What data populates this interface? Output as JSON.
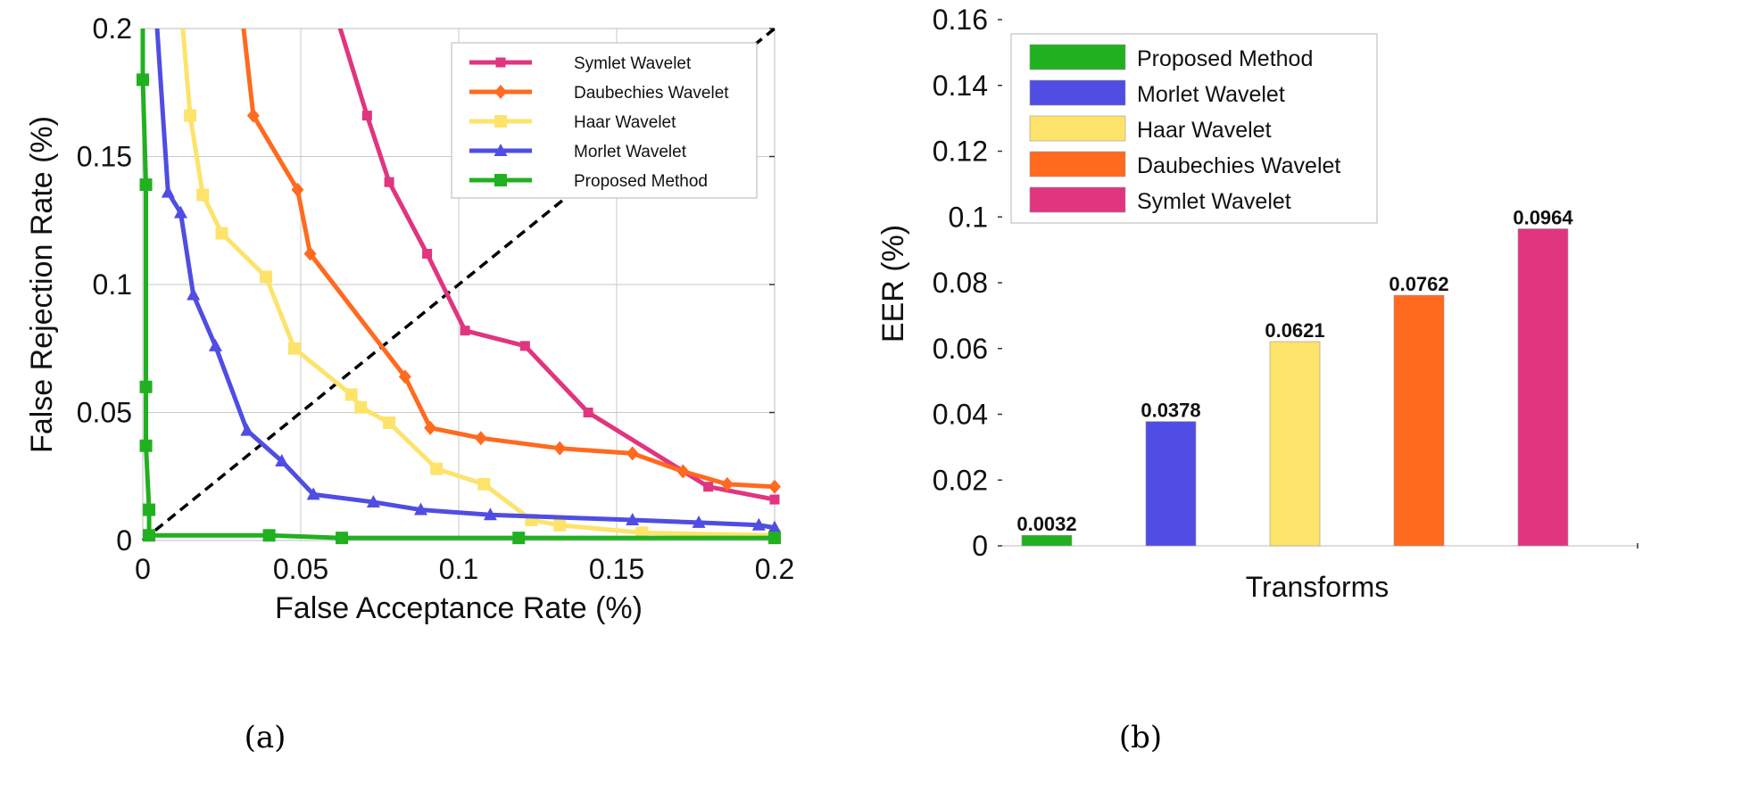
{
  "colors": {
    "symlet": "#E0357F",
    "daubechies": "#FF6A1F",
    "haar": "#FDE36A",
    "morlet": "#4F4DE3",
    "proposed": "#21B020",
    "grid": "#C8C8C8",
    "eer_line": "#000000"
  },
  "captions": {
    "a": "(a)",
    "b": "(b)"
  },
  "chart_data": [
    {
      "type": "line",
      "title": "",
      "xlabel": "False Acceptance Rate (%)",
      "ylabel": "False Rejection Rate (%)",
      "xlim": [
        0,
        0.2
      ],
      "ylim": [
        0,
        0.2
      ],
      "x_ticks": [
        0,
        0.05,
        0.1,
        0.15,
        0.2
      ],
      "x_tick_labels": [
        "0",
        "0.05",
        "0.1",
        "0.15",
        "0.2"
      ],
      "y_ticks": [
        0,
        0.05,
        0.1,
        0.15,
        0.2
      ],
      "y_tick_labels": [
        "0",
        "0.05",
        "0.1",
        "0.15",
        "0.2"
      ],
      "grid": true,
      "legend_position": "top-right",
      "equal_error_line": {
        "from": [
          0,
          0
        ],
        "to": [
          0.2,
          0.2
        ],
        "style": "dashed"
      },
      "series": [
        {
          "name": "Symlet Wavelet",
          "color_key": "symlet",
          "marker": "square-small",
          "points": [
            [
              0.06,
              0.21
            ],
            [
              0.071,
              0.166
            ],
            [
              0.078,
              0.14
            ],
            [
              0.09,
              0.112
            ],
            [
              0.102,
              0.082
            ],
            [
              0.121,
              0.076
            ],
            [
              0.141,
              0.05
            ],
            [
              0.179,
              0.021
            ],
            [
              0.2,
              0.016
            ]
          ]
        },
        {
          "name": "Daubechies Wavelet",
          "color_key": "daubechies",
          "marker": "diamond",
          "points": [
            [
              0.031,
              0.21
            ],
            [
              0.035,
              0.166
            ],
            [
              0.049,
              0.137
            ],
            [
              0.053,
              0.112
            ],
            [
              0.083,
              0.064
            ],
            [
              0.091,
              0.044
            ],
            [
              0.107,
              0.04
            ],
            [
              0.132,
              0.036
            ],
            [
              0.155,
              0.034
            ],
            [
              0.171,
              0.027
            ],
            [
              0.185,
              0.022
            ],
            [
              0.2,
              0.021
            ]
          ]
        },
        {
          "name": "Haar Wavelet",
          "color_key": "haar",
          "marker": "square",
          "points": [
            [
              0.012,
              0.21
            ],
            [
              0.015,
              0.166
            ],
            [
              0.019,
              0.135
            ],
            [
              0.025,
              0.12
            ],
            [
              0.039,
              0.103
            ],
            [
              0.048,
              0.075
            ],
            [
              0.066,
              0.057
            ],
            [
              0.069,
              0.052
            ],
            [
              0.078,
              0.046
            ],
            [
              0.093,
              0.028
            ],
            [
              0.108,
              0.022
            ],
            [
              0.123,
              0.008
            ],
            [
              0.132,
              0.006
            ],
            [
              0.158,
              0.003
            ],
            [
              0.2,
              0.002
            ]
          ]
        },
        {
          "name": "Morlet Wavelet",
          "color_key": "morlet",
          "marker": "triangle",
          "points": [
            [
              0.004,
              0.21
            ],
            [
              0.008,
              0.136
            ],
            [
              0.012,
              0.128
            ],
            [
              0.016,
              0.096
            ],
            [
              0.023,
              0.076
            ],
            [
              0.033,
              0.043
            ],
            [
              0.044,
              0.031
            ],
            [
              0.054,
              0.018
            ],
            [
              0.073,
              0.015
            ],
            [
              0.088,
              0.012
            ],
            [
              0.11,
              0.01
            ],
            [
              0.155,
              0.008
            ],
            [
              0.176,
              0.007
            ],
            [
              0.195,
              0.006
            ],
            [
              0.2,
              0.005
            ]
          ]
        },
        {
          "name": "Proposed Method",
          "color_key": "proposed",
          "marker": "square",
          "points": [
            [
              0,
              0.21
            ],
            [
              0,
              0.18
            ],
            [
              0.001,
              0.139
            ],
            [
              0.001,
              0.06
            ],
            [
              0.001,
              0.037
            ],
            [
              0.002,
              0.012
            ],
            [
              0.002,
              0.002
            ],
            [
              0.04,
              0.002
            ],
            [
              0.063,
              0.001
            ],
            [
              0.119,
              0.001
            ],
            [
              0.2,
              0.001
            ]
          ]
        }
      ]
    },
    {
      "type": "bar",
      "title": "",
      "xlabel": "Transforms",
      "ylabel": "EER (%)",
      "ylim": [
        0,
        0.16
      ],
      "y_ticks": [
        0,
        0.02,
        0.04,
        0.06,
        0.08,
        0.1,
        0.12,
        0.14,
        0.16
      ],
      "y_tick_labels": [
        "0",
        "0.02",
        "0.04",
        "0.06",
        "0.08",
        "0.1",
        "0.12",
        "0.14",
        "0.16"
      ],
      "grid": false,
      "legend_position": "top-left",
      "legend_order": [
        "Proposed Method",
        "Morlet Wavelet",
        "Haar Wavelet",
        "Daubechies Wavelet",
        "Symlet Wavelet"
      ],
      "bars": [
        {
          "name": "Proposed Method",
          "color_key": "proposed",
          "value": 0.0032,
          "label": "0.0032"
        },
        {
          "name": "Morlet Wavelet",
          "color_key": "morlet",
          "value": 0.0378,
          "label": "0.0378"
        },
        {
          "name": "Haar Wavelet",
          "color_key": "haar",
          "value": 0.0621,
          "label": "0.0621"
        },
        {
          "name": "Daubechies Wavelet",
          "color_key": "daubechies",
          "value": 0.0762,
          "label": "0.0762"
        },
        {
          "name": "Symlet Wavelet",
          "color_key": "symlet",
          "value": 0.0964,
          "label": "0.0964"
        }
      ]
    }
  ]
}
